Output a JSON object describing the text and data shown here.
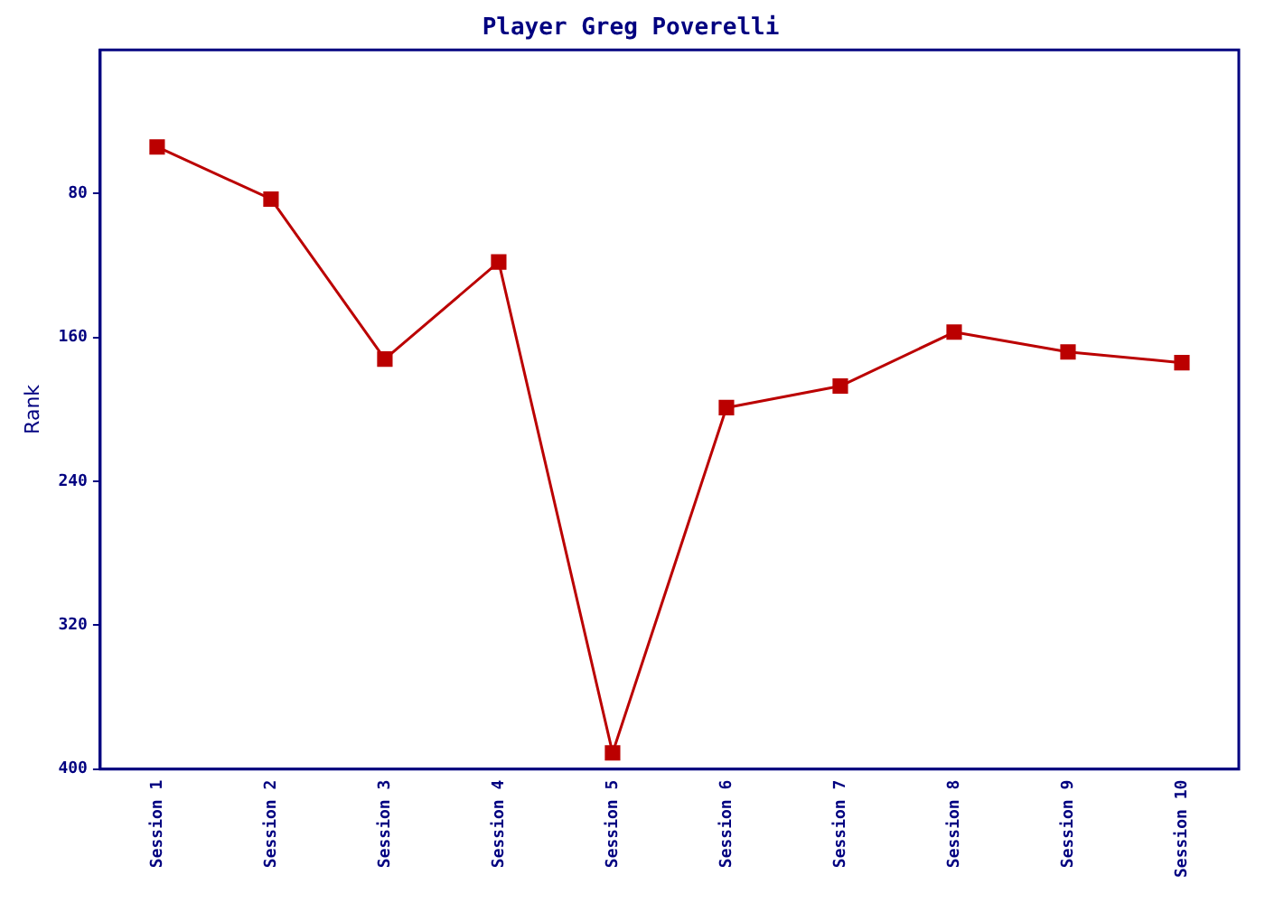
{
  "chart_data": {
    "type": "line",
    "title": "Player Greg Poverelli",
    "ylabel": "Rank",
    "categories": [
      "Session 1",
      "Session 2",
      "Session 3",
      "Session 4",
      "Session 5",
      "Session 6",
      "Session 7",
      "Session 8",
      "Session 9",
      "Session 10"
    ],
    "series": [
      {
        "color": "#bb0000",
        "values": [
          54,
          83,
          172,
          118,
          391,
          199,
          187,
          157,
          168,
          174
        ]
      }
    ],
    "ylim": [
      400,
      0
    ],
    "yticks": [
      80,
      160,
      240,
      320,
      400
    ],
    "grid": false,
    "legend": false,
    "marker": "square",
    "line_style": "solid"
  }
}
